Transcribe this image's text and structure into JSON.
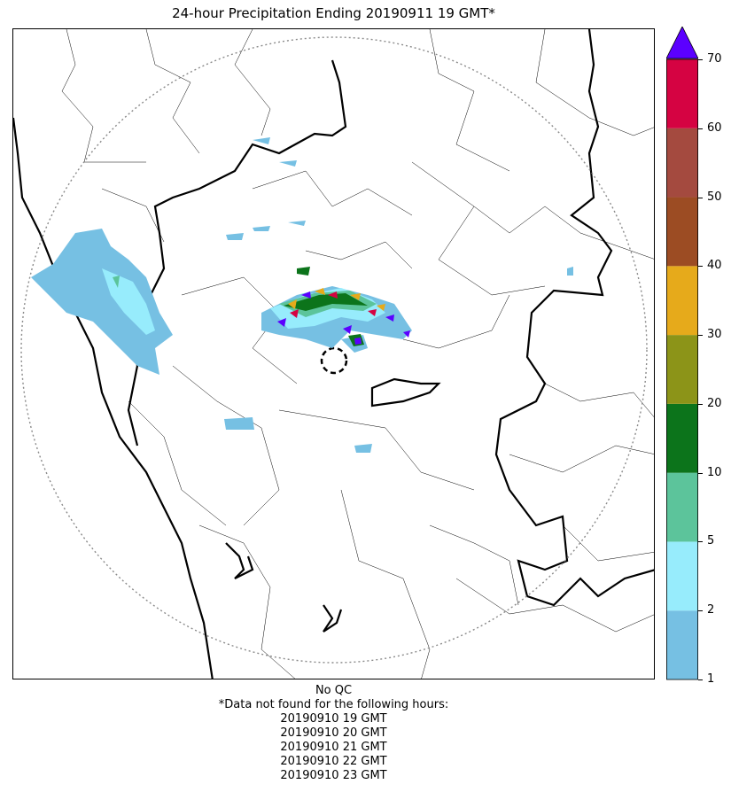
{
  "title": "24-hour Precipitation Ending 20190911 19 GMT*",
  "colorbar": {
    "ticks": [
      "1",
      "2",
      "5",
      "10",
      "20",
      "30",
      "40",
      "50",
      "60",
      "70"
    ],
    "bins": [
      {
        "from": "1",
        "to": "2",
        "color": "#76c0e3"
      },
      {
        "from": "2",
        "to": "5",
        "color": "#97ecfc"
      },
      {
        "from": "5",
        "to": "10",
        "color": "#5cc49b"
      },
      {
        "from": "10",
        "to": "20",
        "color": "#0c741b"
      },
      {
        "from": "20",
        "to": "30",
        "color": "#8c9418"
      },
      {
        "from": "30",
        "to": "40",
        "color": "#e6aa1b"
      },
      {
        "from": "40",
        "to": "50",
        "color": "#9c4c23"
      },
      {
        "from": "50",
        "to": "60",
        "color": "#a44a3f"
      },
      {
        "from": "60",
        "to": "70",
        "color": "#d50342"
      }
    ],
    "overflow_color": "#5b00ff"
  },
  "footnotes": [
    "No QC",
    "*Data not found for the following hours:",
    "20190910 19 GMT",
    "20190910 20 GMT",
    "20190910 21 GMT",
    "20190910 22 GMT",
    "20190910 23 GMT"
  ]
}
